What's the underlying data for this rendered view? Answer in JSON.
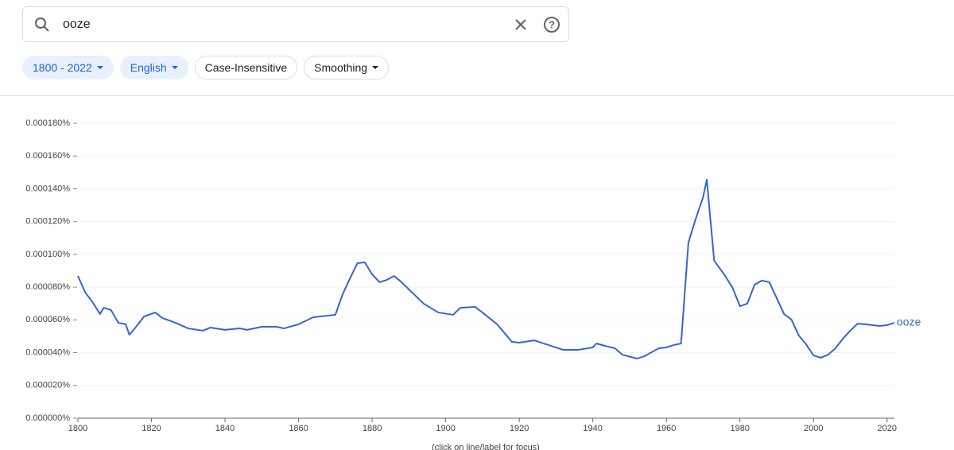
{
  "search": {
    "query": "ooze"
  },
  "chips": [
    "1800 - 2022",
    "English",
    "Case-Insensitive",
    "Smoothing"
  ],
  "chart_data": {
    "type": "line",
    "note": "(click on line/label for focus)",
    "xlim": [
      1800,
      2022
    ],
    "xticks": [
      1800,
      1820,
      1840,
      1860,
      1880,
      1900,
      1920,
      1940,
      1960,
      1980,
      2000,
      2020
    ],
    "ylim": [
      0,
      0.00018
    ],
    "yticks": [
      {
        "value": 0,
        "label": "0.000000%"
      },
      {
        "value": 2e-05,
        "label": "0.000020%"
      },
      {
        "value": 4e-05,
        "label": "0.000040%"
      },
      {
        "value": 6e-05,
        "label": "0.000060%"
      },
      {
        "value": 8e-05,
        "label": "0.000080%"
      },
      {
        "value": 0.0001,
        "label": "0.000100%"
      },
      {
        "value": 0.00012,
        "label": "0.000120%"
      },
      {
        "value": 0.00014,
        "label": "0.000140%"
      },
      {
        "value": 0.00016,
        "label": "0.000160%"
      },
      {
        "value": 0.00018,
        "label": "0.000180%"
      }
    ],
    "grid": true,
    "x": [
      1800,
      1802,
      1804,
      1806,
      1807,
      1809,
      1811,
      1813,
      1814,
      1816,
      1818,
      1821,
      1823,
      1826,
      1830,
      1834,
      1836,
      1840,
      1844,
      1846,
      1850,
      1854,
      1856,
      1860,
      1864,
      1868,
      1870,
      1872,
      1874,
      1876,
      1878,
      1880,
      1882,
      1884,
      1886,
      1888,
      1890,
      1894,
      1898,
      1902,
      1904,
      1908,
      1910,
      1914,
      1918,
      1920,
      1924,
      1928,
      1932,
      1936,
      1940,
      1941,
      1944,
      1946,
      1948,
      1952,
      1954,
      1956,
      1958,
      1960,
      1962,
      1964,
      1966,
      1968,
      1970,
      1971,
      1973,
      1976,
      1978,
      1980,
      1982,
      1984,
      1986,
      1988,
      1990,
      1992,
      1994,
      1996,
      1998,
      2000,
      2002,
      2004,
      2006,
      2008,
      2010,
      2012,
      2014,
      2016,
      2018,
      2020,
      2022
    ],
    "series": [
      {
        "name": "ooze",
        "color": "#3366cc",
        "values": [
          8.68e-05,
          7.67e-05,
          7.08e-05,
          6.36e-05,
          6.74e-05,
          6.6e-05,
          5.82e-05,
          5.73e-05,
          5.09e-05,
          5.63e-05,
          6.21e-05,
          6.45e-05,
          6.11e-05,
          5.87e-05,
          5.48e-05,
          5.34e-05,
          5.53e-05,
          5.39e-05,
          5.48e-05,
          5.39e-05,
          5.58e-05,
          5.58e-05,
          5.48e-05,
          5.73e-05,
          6.16e-05,
          6.26e-05,
          6.31e-05,
          7.57e-05,
          8.54e-05,
          9.46e-05,
          9.51e-05,
          8.78e-05,
          8.3e-05,
          8.44e-05,
          8.68e-05,
          8.3e-05,
          7.86e-05,
          6.99e-05,
          6.45e-05,
          6.31e-05,
          6.74e-05,
          6.79e-05,
          6.45e-05,
          5.73e-05,
          4.66e-05,
          4.61e-05,
          4.75e-05,
          4.46e-05,
          4.17e-05,
          4.17e-05,
          4.32e-05,
          4.56e-05,
          4.37e-05,
          4.27e-05,
          3.88e-05,
          3.64e-05,
          3.78e-05,
          4.03e-05,
          4.27e-05,
          4.32e-05,
          4.46e-05,
          4.56e-05,
          0.0001072,
          0.0001218,
          0.0001349,
          0.0001456,
          9.61e-05,
          8.68e-05,
          7.96e-05,
          6.84e-05,
          6.99e-05,
          8.15e-05,
          8.4e-05,
          8.3e-05,
          7.33e-05,
          6.36e-05,
          6.02e-05,
          5.05e-05,
          4.51e-05,
          3.83e-05,
          3.69e-05,
          3.88e-05,
          4.27e-05,
          4.85e-05,
          5.34e-05,
          5.77e-05,
          5.73e-05,
          5.68e-05,
          5.63e-05,
          5.68e-05,
          5.82e-05
        ]
      }
    ]
  }
}
